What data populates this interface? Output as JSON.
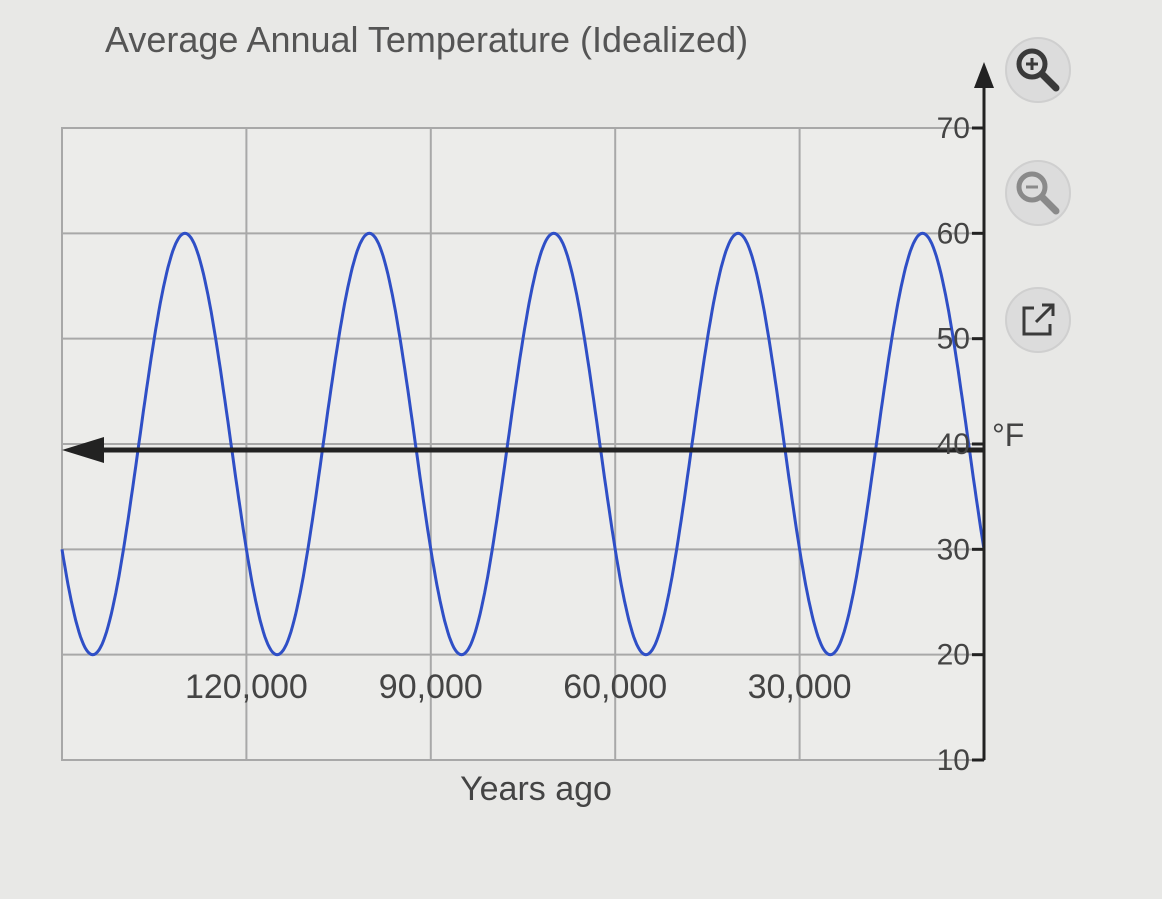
{
  "chart_data": {
    "type": "line",
    "title": "Average Annual Temperature (Idealized)",
    "xlabel": "Years ago",
    "ylabel": "°F",
    "x_direction": "reversed",
    "xlim": [
      150000,
      0
    ],
    "ylim": [
      10,
      70
    ],
    "x_ticks": [
      {
        "value": 120000,
        "label": "120,000"
      },
      {
        "value": 90000,
        "label": "90,000"
      },
      {
        "value": 60000,
        "label": "60,000"
      },
      {
        "value": 30000,
        "label": "30,000"
      }
    ],
    "y_ticks": [
      {
        "value": 70,
        "label": "70"
      },
      {
        "value": 60,
        "label": "60"
      },
      {
        "value": 50,
        "label": "50"
      },
      {
        "value": 40,
        "label": "40"
      },
      {
        "value": 30,
        "label": "30"
      },
      {
        "value": 20,
        "label": "20"
      },
      {
        "value": 10,
        "label": "10"
      }
    ],
    "grid": true,
    "series": [
      {
        "model": "sinusoid",
        "amplitude": 20,
        "midline": 40,
        "period_years": 30000,
        "maximum_at_years_ago": 10000,
        "x_range": [
          150000,
          0
        ],
        "color": "#2f4fc6"
      }
    ]
  },
  "colors": {
    "background": "#e8e8e6",
    "grid": "#a8a8a8",
    "axis": "#222222",
    "curve": "#2f4fc6",
    "icon": "#3a3a3a"
  },
  "toolbar": {
    "zoom_in_icon": "zoom-in-icon",
    "zoom_out_icon": "zoom-out-icon",
    "open_external_icon": "open-external-icon"
  }
}
